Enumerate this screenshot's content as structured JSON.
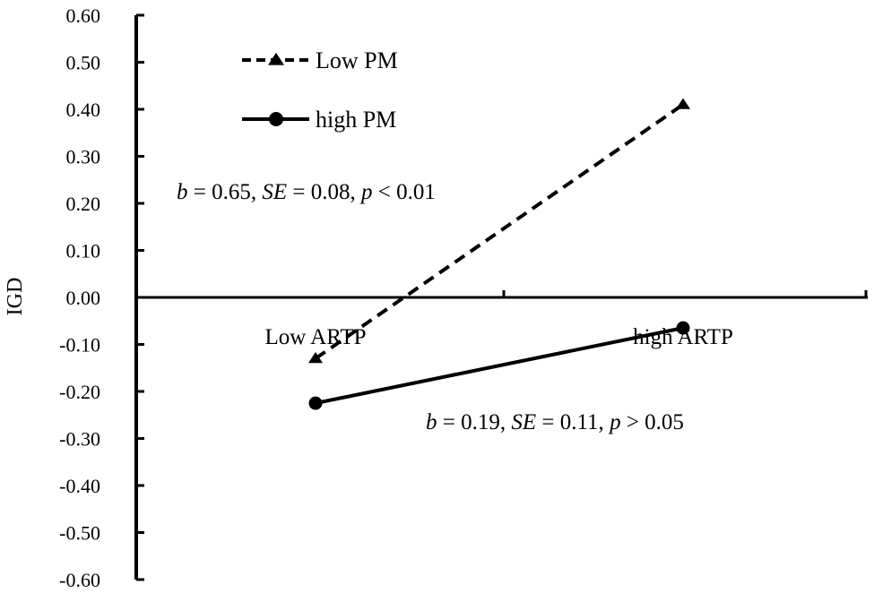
{
  "chart_data": {
    "type": "line",
    "ylabel": "IGD",
    "xlabel": "",
    "categories": [
      "Low ARTP",
      "high ARTP"
    ],
    "ylim": [
      -0.6,
      0.6
    ],
    "ytick_step": 0.1,
    "yticks": [
      "0.60",
      "0.50",
      "0.40",
      "0.30",
      "0.20",
      "0.10",
      "0.00",
      "-0.10",
      "-0.20",
      "-0.30",
      "-0.40",
      "-0.50",
      "-0.60"
    ],
    "grid": false,
    "legend_position": "top-left",
    "series": [
      {
        "name": "Low PM",
        "values": [
          -0.13,
          0.41
        ],
        "line_style": "dashed",
        "marker": "triangle",
        "color": "#000000"
      },
      {
        "name": "high PM",
        "values": [
          -0.225,
          -0.065
        ],
        "line_style": "solid",
        "marker": "circle",
        "color": "#000000"
      }
    ],
    "annotations": [
      {
        "series": "Low PM",
        "b_label": "b",
        "b_value": " = 0.65, ",
        "se_label": "SE",
        "se_value": " = 0.08, ",
        "p_label": "p",
        "p_value": " < 0.01"
      },
      {
        "series": "high PM",
        "b_label": "b",
        "b_value": " = 0.19, ",
        "se_label": "SE",
        "se_value": " = 0.11, ",
        "p_label": "p",
        "p_value": " > 0.05"
      }
    ]
  }
}
